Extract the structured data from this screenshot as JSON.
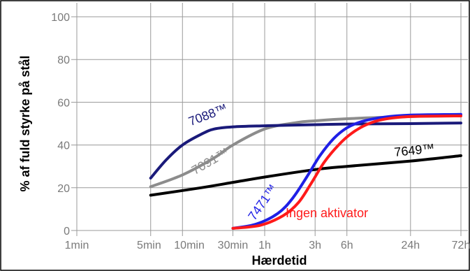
{
  "chart_data": {
    "type": "line",
    "title": "",
    "xlabel": "Hærdetid",
    "ylabel": "% af fuld styrke på stål",
    "x_scale": "log",
    "x_unit": "minutes",
    "x_ticks": [
      {
        "label": "1min",
        "value": 1
      },
      {
        "label": "5min",
        "value": 5
      },
      {
        "label": "10min",
        "value": 10
      },
      {
        "label": "30min",
        "value": 30
      },
      {
        "label": "1h",
        "value": 60
      },
      {
        "label": "3h",
        "value": 180
      },
      {
        "label": "6h",
        "value": 360
      },
      {
        "label": "24h",
        "value": 1440
      },
      {
        "label": "72h",
        "value": 4320
      }
    ],
    "y_ticks": [
      0,
      20,
      40,
      60,
      80,
      100
    ],
    "ylim": [
      0,
      100
    ],
    "grid": true,
    "series": [
      {
        "name": "7088™",
        "color": "#1a1a7a",
        "points": [
          [
            5,
            24.5
          ],
          [
            7,
            33
          ],
          [
            10,
            40
          ],
          [
            15,
            45
          ],
          [
            20,
            47.5
          ],
          [
            30,
            48.5
          ],
          [
            60,
            49
          ],
          [
            180,
            49.5
          ],
          [
            360,
            49.8
          ],
          [
            1440,
            50
          ],
          [
            4320,
            50.3
          ]
        ]
      },
      {
        "name": "7091™",
        "color": "#8c8c8c",
        "points": [
          [
            5,
            20.5
          ],
          [
            10,
            26
          ],
          [
            20,
            34
          ],
          [
            30,
            40
          ],
          [
            60,
            47.5
          ],
          [
            120,
            50.5
          ],
          [
            180,
            51.3
          ],
          [
            360,
            52.3
          ],
          [
            1440,
            53.3
          ],
          [
            4320,
            53.6
          ]
        ]
      },
      {
        "name": "7649™",
        "color": "#000000",
        "points": [
          [
            5,
            16.5
          ],
          [
            15,
            20
          ],
          [
            30,
            22.5
          ],
          [
            60,
            25
          ],
          [
            180,
            28.5
          ],
          [
            360,
            30
          ],
          [
            1440,
            32.5
          ],
          [
            4320,
            35
          ]
        ]
      },
      {
        "name": "7471™",
        "color": "#1f1fe6",
        "points": [
          [
            30,
            1
          ],
          [
            50,
            3
          ],
          [
            80,
            8
          ],
          [
            110,
            15
          ],
          [
            150,
            25
          ],
          [
            200,
            35
          ],
          [
            270,
            43
          ],
          [
            360,
            48
          ],
          [
            500,
            51
          ],
          [
            800,
            53
          ],
          [
            1440,
            54
          ],
          [
            4320,
            54.3
          ]
        ]
      },
      {
        "name": "Ingen aktivator",
        "color": "#ff1a1a",
        "points": [
          [
            30,
            1
          ],
          [
            55,
            2.5
          ],
          [
            90,
            7
          ],
          [
            125,
            13
          ],
          [
            165,
            22
          ],
          [
            220,
            32
          ],
          [
            300,
            40
          ],
          [
            400,
            45.5
          ],
          [
            550,
            49.5
          ],
          [
            800,
            52
          ],
          [
            1440,
            53.3
          ],
          [
            4320,
            53.6
          ]
        ]
      }
    ],
    "annotations": [
      {
        "text": "7088™",
        "series": "7088™"
      },
      {
        "text": "7091™",
        "series": "7091™"
      },
      {
        "text": "7649™",
        "series": "7649™"
      },
      {
        "text": "7471™",
        "series": "7471™"
      },
      {
        "text": "Ingen aktivator",
        "series": "Ingen aktivator"
      }
    ]
  }
}
